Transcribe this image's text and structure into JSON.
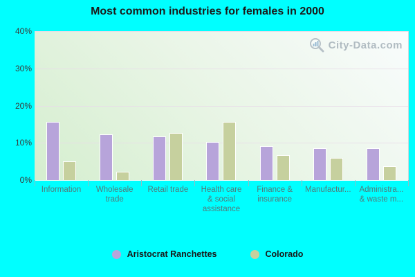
{
  "title": "Most common industries for females in 2000",
  "watermark": {
    "text": "City-Data.com"
  },
  "colors": {
    "background": "#00ffff",
    "series1": "#b7a4da",
    "series2": "#c6d09e",
    "bar_border": "#ffffff",
    "gridline": "#e7dce7",
    "y_label": "#3a3a3a",
    "x_label": "#527a7a",
    "title_text": "#1b1b1b",
    "watermark_text": "#9aa7b0"
  },
  "chart_data": {
    "type": "bar",
    "title": "Most common industries for females in 2000",
    "categories": [
      "Information",
      "Wholesale\ntrade",
      "Retail trade",
      "Health care\n& social\nassistance",
      "Finance &\ninsurance",
      "Manufactur...",
      "Administra...\n& waste m..."
    ],
    "series": [
      {
        "name": "Aristocrat Ranchettes",
        "color": "#b7a4da",
        "values": [
          15.6,
          12.3,
          11.7,
          10.3,
          9.1,
          8.6,
          8.6
        ]
      },
      {
        "name": "Colorado",
        "color": "#c6d09e",
        "values": [
          5.0,
          2.3,
          12.6,
          15.7,
          6.7,
          6.0,
          3.7
        ]
      }
    ],
    "xlabel": "",
    "ylabel": "",
    "ylim": [
      0,
      40
    ],
    "yticks": [
      {
        "v": 0,
        "label": "0%"
      },
      {
        "v": 10,
        "label": "10%"
      },
      {
        "v": 20,
        "label": "20%"
      },
      {
        "v": 30,
        "label": "30%"
      },
      {
        "v": 40,
        "label": "40%"
      }
    ],
    "grid": true,
    "legend_position": "bottom-center"
  },
  "legend": {
    "items": [
      {
        "label": "Aristocrat Ranchettes",
        "color": "#b7a4da"
      },
      {
        "label": "Colorado",
        "color": "#c6d09e"
      }
    ]
  }
}
